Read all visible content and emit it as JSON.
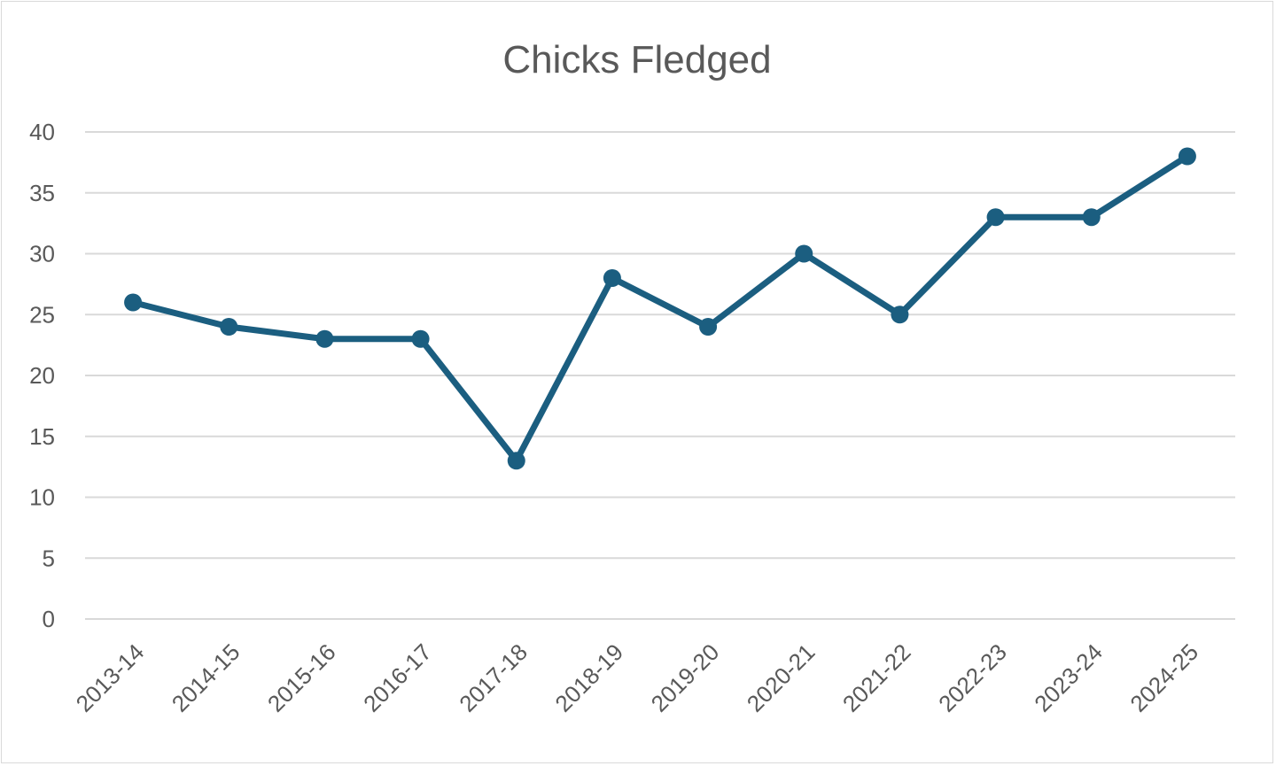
{
  "chart_data": {
    "type": "line",
    "title": "Chicks Fledged",
    "xlabel": "",
    "ylabel": "",
    "categories": [
      "2013-14",
      "2014-15",
      "2015-16",
      "2016-17",
      "2017-18",
      "2018-19",
      "2019-20",
      "2020-21",
      "2021-22",
      "2022-23",
      "2023-24",
      "2024-25"
    ],
    "series": [
      {
        "values": [
          26,
          24,
          23,
          23,
          13,
          28,
          24,
          30,
          25,
          33,
          33,
          38
        ]
      }
    ],
    "ylim": [
      0,
      40
    ],
    "yticks": [
      0,
      5,
      10,
      15,
      20,
      25,
      30,
      35,
      40
    ],
    "grid": true,
    "legend": "none",
    "colors": {
      "series": "#1b5e80",
      "grid": "#d9d9d9",
      "text": "#595959"
    }
  }
}
